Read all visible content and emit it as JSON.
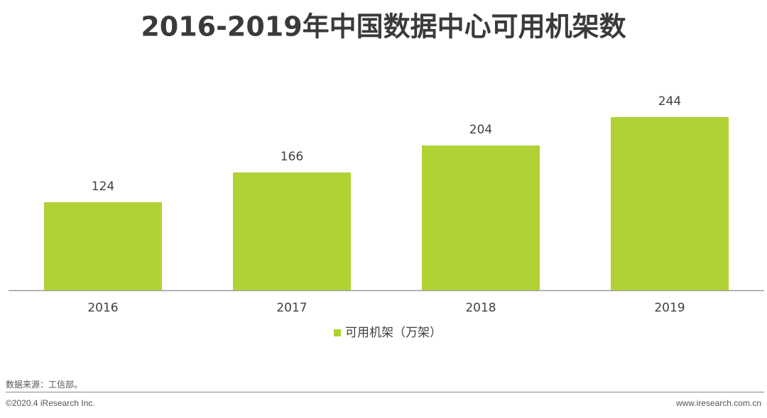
{
  "chart_data": {
    "type": "bar",
    "title": "2016-2019年中国数据中心可用机架数",
    "categories": [
      "2016",
      "2017",
      "2018",
      "2019"
    ],
    "series": [
      {
        "name": "可用机架（万架）",
        "color": "#b0d235",
        "values": [
          124,
          166,
          204,
          244
        ]
      }
    ],
    "ylim": [
      0,
      250
    ],
    "legend": "bottom"
  },
  "footer": {
    "source": "数据来源：工信部。",
    "copyright": "©2020.4 iResearch Inc.",
    "website": "www.iresearch.com.cn"
  }
}
